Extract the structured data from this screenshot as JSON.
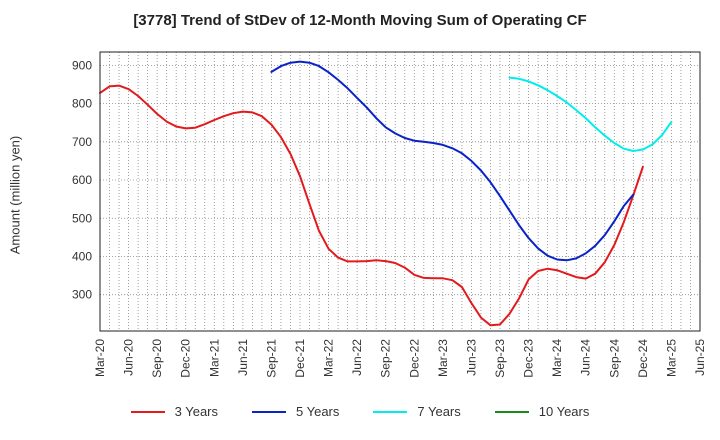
{
  "header": {
    "title": "[3778]  Trend of StDev of 12-Month Moving Sum of Operating CF"
  },
  "chart_data": {
    "type": "line",
    "title": "[3778]  Trend of StDev of 12-Month Moving Sum of Operating CF",
    "xlabel": "",
    "ylabel": "Amount (million yen)",
    "ylim": [
      205,
      935
    ],
    "yticks": [
      300,
      400,
      500,
      600,
      700,
      800,
      900
    ],
    "xticks": [
      "Mar-20",
      "Jun-20",
      "Sep-20",
      "Dec-20",
      "Mar-21",
      "Jun-21",
      "Sep-21",
      "Dec-21",
      "Mar-22",
      "Jun-22",
      "Sep-22",
      "Dec-22",
      "Mar-23",
      "Jun-23",
      "Sep-23",
      "Dec-23",
      "Mar-24",
      "Jun-24",
      "Sep-24",
      "Dec-24",
      "Mar-25",
      "Jun-25"
    ],
    "grid": true,
    "legend_position": "bottom",
    "series": [
      {
        "name": "3 Years",
        "color": "#e31a1c",
        "start_index": 0,
        "values": [
          828,
          845,
          847,
          838,
          820,
          797,
          773,
          753,
          740,
          735,
          737,
          746,
          757,
          767,
          775,
          779,
          777,
          767,
          745,
          712,
          668,
          610,
          537,
          467,
          420,
          397,
          387,
          387,
          388,
          390,
          388,
          383,
          371,
          352,
          344,
          343,
          343,
          338,
          320,
          278,
          240,
          220,
          222,
          250,
          290,
          340,
          362,
          368,
          364,
          355,
          346,
          342,
          355,
          385,
          430,
          490,
          560,
          635
        ]
      },
      {
        "name": "5 Years",
        "color": "#0a22c8",
        "start_index": 18,
        "values": [
          883,
          898,
          907,
          910,
          907,
          898,
          882,
          862,
          840,
          815,
          790,
          762,
          738,
          722,
          710,
          703,
          700,
          697,
          692,
          683,
          670,
          650,
          625,
          594,
          558,
          520,
          482,
          448,
          421,
          402,
          392,
          390,
          395,
          408,
          428,
          456,
          492,
          532,
          562
        ]
      },
      {
        "name": "7 Years",
        "color": "#00eded",
        "start_index": 43,
        "values": [
          868,
          865,
          858,
          848,
          835,
          820,
          803,
          783,
          762,
          738,
          716,
          697,
          682,
          676,
          680,
          693,
          717,
          752
        ]
      },
      {
        "name": "10 Years",
        "color": "#1a8a1a",
        "start_index": 0,
        "values": []
      }
    ]
  }
}
